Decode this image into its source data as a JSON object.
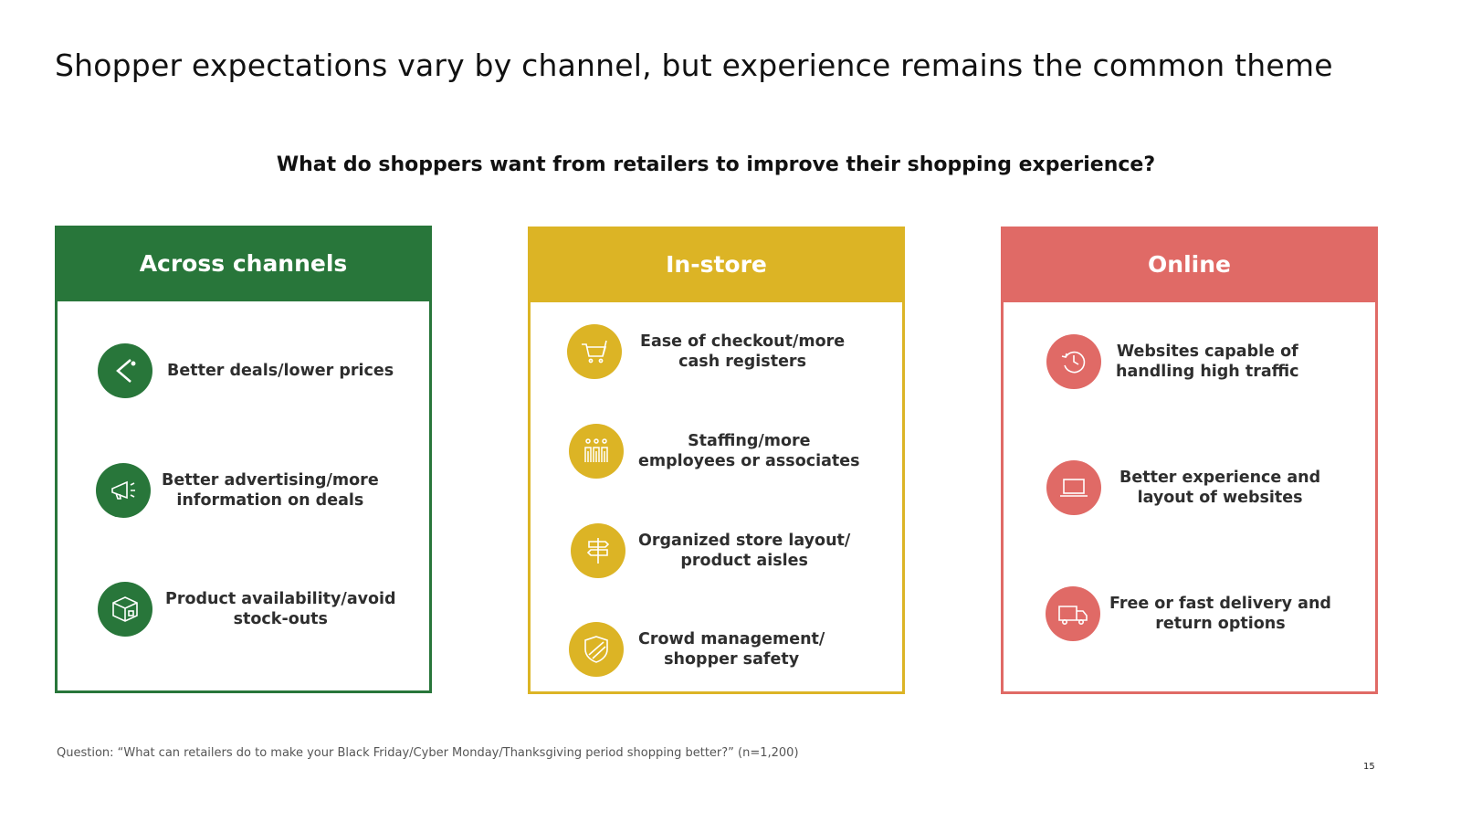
{
  "title": "Shopper expectations vary by channel, but experience remains the common theme",
  "subtitle": "What do shoppers want from retailers to improve their shopping experience?",
  "colors": {
    "green": "#28763a",
    "yellow": "#dcb425",
    "red": "#e06a66"
  },
  "panels": [
    {
      "title": "Across channels",
      "items": [
        {
          "icon": "price-tag-icon",
          "label": "Better deals/lower prices"
        },
        {
          "icon": "megaphone-icon",
          "label": "Better advertising/more\ninformation on deals"
        },
        {
          "icon": "box-icon",
          "label": "Product availability/avoid\nstock-outs"
        }
      ]
    },
    {
      "title": "In-store",
      "items": [
        {
          "icon": "shopping-cart-icon",
          "label": "Ease of checkout/more\ncash registers"
        },
        {
          "icon": "people-icon",
          "label": "Staffing/more\nemployees or associates"
        },
        {
          "icon": "signpost-icon",
          "label": "Organized store layout/\nproduct aisles"
        },
        {
          "icon": "shield-icon",
          "label": "Crowd management/\nshopper safety"
        }
      ]
    },
    {
      "title": "Online",
      "items": [
        {
          "icon": "refresh-clock-icon",
          "label": "Websites capable of\nhandling high traffic"
        },
        {
          "icon": "laptop-icon",
          "label": "Better experience and\nlayout of websites"
        },
        {
          "icon": "delivery-truck-icon",
          "label": "Free or fast delivery and\nreturn options"
        }
      ]
    }
  ],
  "footnote": "Question: “What can retailers do to make your Black Friday/Cyber Monday/Thanksgiving period shopping better?” (n=1,200)",
  "page_number": "15"
}
